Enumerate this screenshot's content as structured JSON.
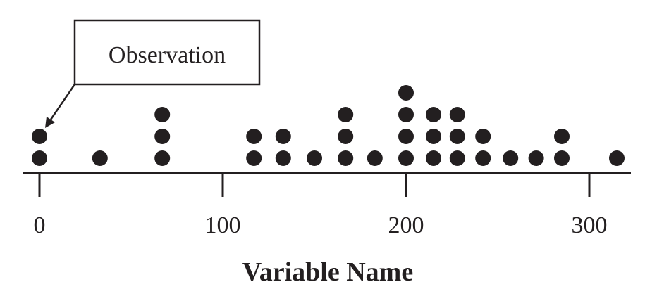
{
  "chart_data": {
    "type": "dot",
    "xlabel": "Variable Name",
    "xlim": [
      0,
      320
    ],
    "xticks": [
      {
        "value": 0,
        "label": "0"
      },
      {
        "value": 100,
        "label": "100"
      },
      {
        "value": 200,
        "label": "200"
      },
      {
        "value": 300,
        "label": "300"
      }
    ],
    "points": [
      {
        "x": 0,
        "count": 2
      },
      {
        "x": 33,
        "count": 1
      },
      {
        "x": 67,
        "count": 3
      },
      {
        "x": 117,
        "count": 2
      },
      {
        "x": 133,
        "count": 2
      },
      {
        "x": 150,
        "count": 1
      },
      {
        "x": 167,
        "count": 3
      },
      {
        "x": 183,
        "count": 1
      },
      {
        "x": 200,
        "count": 4
      },
      {
        "x": 215,
        "count": 3
      },
      {
        "x": 228,
        "count": 3
      },
      {
        "x": 242,
        "count": 2
      },
      {
        "x": 257,
        "count": 1
      },
      {
        "x": 271,
        "count": 1
      },
      {
        "x": 285,
        "count": 2
      },
      {
        "x": 315,
        "count": 1
      }
    ],
    "annotation": {
      "text": "Observation",
      "target": {
        "x": 0,
        "level": 2
      }
    },
    "grid": false,
    "legend": "none"
  }
}
